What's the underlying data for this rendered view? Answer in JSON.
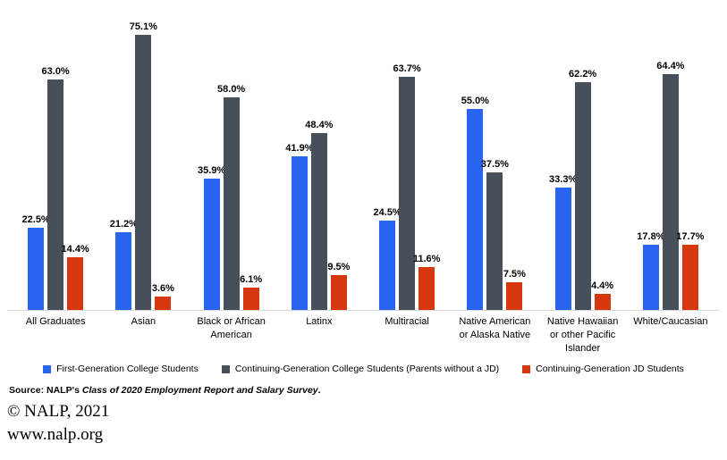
{
  "chart_data": {
    "type": "bar",
    "categories": [
      "All Graduates",
      "Asian",
      "Black or African American",
      "Latinx",
      "Multiracial",
      "Native American or Alaska Native",
      "Native Hawaiian or other Pacific Islander",
      "White/Caucasian"
    ],
    "series": [
      {
        "name": "First-Generation College Students",
        "color": "#2864F0",
        "values": [
          22.5,
          21.2,
          35.9,
          41.9,
          24.5,
          55.0,
          33.3,
          17.8
        ]
      },
      {
        "name": "Continuing-Generation College Students (Parents without a JD)",
        "color": "#47505A",
        "values": [
          63.0,
          75.1,
          58.0,
          48.4,
          63.7,
          37.5,
          62.2,
          64.4
        ]
      },
      {
        "name": "Continuing-Generation JD Students",
        "color": "#D6370E",
        "values": [
          14.4,
          3.6,
          6.1,
          9.5,
          11.6,
          7.5,
          4.4,
          17.7
        ]
      }
    ],
    "value_suffix": "%",
    "value_label_format": "one_decimal_percent",
    "ylim": [
      0,
      80
    ],
    "grid": false,
    "legend_position": "bottom",
    "axis_line_color": "#d9d9d9",
    "data_labels": true
  },
  "source_note": {
    "prefix": "Source:",
    "publisher": " NALP's ",
    "italic_title": "Class of 2020 Employment Report and Salary Survey",
    "suffix": "."
  },
  "footer": {
    "copyright": "© NALP, 2021",
    "website": "www.nalp.org"
  }
}
